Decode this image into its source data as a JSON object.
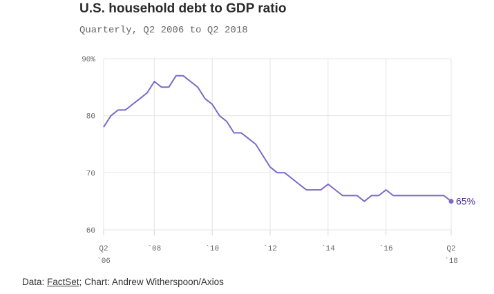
{
  "chart_data": {
    "type": "line",
    "title": "U.S. household debt to GDP ratio",
    "subtitle": "Quarterly, Q2 2006 to Q2 2018",
    "ylim": [
      60,
      90
    ],
    "yticks": [
      {
        "value": 60,
        "label": "60"
      },
      {
        "value": 70,
        "label": "70"
      },
      {
        "value": 80,
        "label": "80"
      },
      {
        "value": 90,
        "label": "90%"
      }
    ],
    "xlim": [
      2006.25,
      2018.25
    ],
    "xticks": [
      {
        "value": 2006.25,
        "line1": "Q2",
        "line2": "`06"
      },
      {
        "value": 2008.0,
        "line1": "`08",
        "line2": ""
      },
      {
        "value": 2010.0,
        "line1": "`10",
        "line2": ""
      },
      {
        "value": 2012.0,
        "line1": "`12",
        "line2": ""
      },
      {
        "value": 2014.0,
        "line1": "`14",
        "line2": ""
      },
      {
        "value": 2016.0,
        "line1": "`16",
        "line2": ""
      },
      {
        "value": 2018.25,
        "line1": "Q2",
        "line2": "`18"
      }
    ],
    "grid": true,
    "series": [
      {
        "color": "#7b68c8",
        "x": [
          2006.25,
          2006.5,
          2006.75,
          2007.0,
          2007.25,
          2007.5,
          2007.75,
          2008.0,
          2008.25,
          2008.5,
          2008.75,
          2009.0,
          2009.25,
          2009.5,
          2009.75,
          2010.0,
          2010.25,
          2010.5,
          2010.75,
          2011.0,
          2011.25,
          2011.5,
          2011.75,
          2012.0,
          2012.25,
          2012.5,
          2012.75,
          2013.0,
          2013.25,
          2013.5,
          2013.75,
          2014.0,
          2014.25,
          2014.5,
          2014.75,
          2015.0,
          2015.25,
          2015.5,
          2015.75,
          2016.0,
          2016.25,
          2016.5,
          2016.75,
          2017.0,
          2017.25,
          2017.5,
          2017.75,
          2018.0,
          2018.25
        ],
        "y": [
          78,
          80,
          81,
          81,
          82,
          83,
          84,
          86,
          85,
          85,
          87,
          87,
          86,
          85,
          83,
          82,
          80,
          79,
          77,
          77,
          76,
          75,
          73,
          71,
          70,
          70,
          69,
          68,
          67,
          67,
          67,
          68,
          67,
          66,
          66,
          66,
          65,
          66,
          66,
          67,
          66,
          66,
          66,
          66,
          66,
          66,
          66,
          66,
          65
        ]
      }
    ],
    "end_label": "65%",
    "end_marker_color": "#7b68c8",
    "end_label_color": "#4b2d8f"
  },
  "source": {
    "prefix": "Data: ",
    "link_text": "FactSet",
    "suffix": "; Chart: Andrew Witherspoon/Axios"
  }
}
